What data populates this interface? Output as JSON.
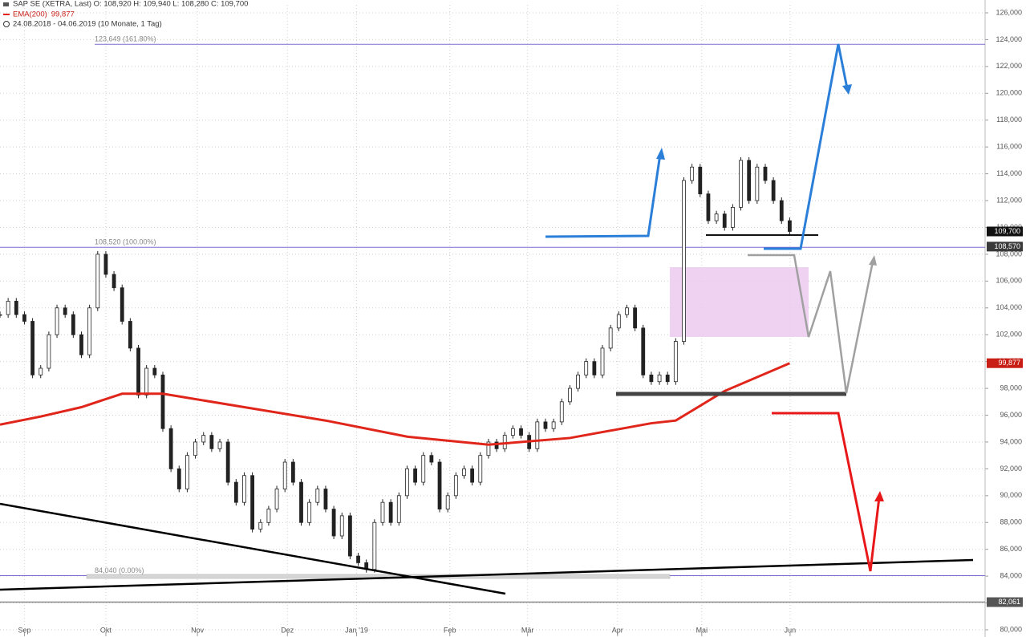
{
  "chart_data": {
    "type": "candlestick",
    "title": "SAP SE (XETRA, Last)  O: 108,920  H: 109,940  L: 108,280  C: 109,700",
    "subtitle": "24.08.2018 - 04.06.2019 (10 Monate, 1 Tag)",
    "xlim": [
      0,
      242
    ],
    "xticks": [
      {
        "value": 6,
        "label": "Sep"
      },
      {
        "value": 26,
        "label": "Okt"
      },
      {
        "value": 48.5,
        "label": "Nov"
      },
      {
        "value": 70.6,
        "label": "Dez"
      },
      {
        "value": 87.6,
        "label": "Jan '19"
      },
      {
        "value": 110.5,
        "label": "Feb"
      },
      {
        "value": 129.6,
        "label": "Mär"
      },
      {
        "value": 151.7,
        "label": "Apr"
      },
      {
        "value": 172.4,
        "label": "Mai"
      },
      {
        "value": 194.1,
        "label": "Jun"
      }
    ],
    "ylim": [
      80000,
      126000
    ],
    "yticks": [
      {
        "value": 80000,
        "label": "80,000"
      },
      {
        "value": 82000,
        "label": "82,000"
      },
      {
        "value": 84000,
        "label": "84,000"
      },
      {
        "value": 86000,
        "label": "86,000"
      },
      {
        "value": 88000,
        "label": "88,000"
      },
      {
        "value": 90000,
        "label": "90,000"
      },
      {
        "value": 92000,
        "label": "92,000"
      },
      {
        "value": 94000,
        "label": "94,000"
      },
      {
        "value": 96000,
        "label": "96,000"
      },
      {
        "value": 98000,
        "label": "98,000"
      },
      {
        "value": 100000,
        "label": "100,000"
      },
      {
        "value": 102000,
        "label": "102,000"
      },
      {
        "value": 104000,
        "label": "104,000"
      },
      {
        "value": 106000,
        "label": "106,000"
      },
      {
        "value": 108000,
        "label": "108,000"
      },
      {
        "value": 110000,
        "label": "110,000"
      },
      {
        "value": 112000,
        "label": "112,000"
      },
      {
        "value": 114000,
        "label": "114,000"
      },
      {
        "value": 116000,
        "label": "116,000"
      },
      {
        "value": 118000,
        "label": "118,000"
      },
      {
        "value": 120000,
        "label": "120,000"
      },
      {
        "value": 122000,
        "label": "122,000"
      },
      {
        "value": 124000,
        "label": "124,000"
      },
      {
        "value": 126000,
        "label": "126,000"
      }
    ],
    "grid": true,
    "price": {
      "color": "#222222",
      "x": [
        0,
        2,
        4,
        6,
        8,
        10,
        12,
        14,
        16,
        18,
        20,
        22,
        24,
        26,
        28,
        30,
        32,
        34,
        36,
        38,
        40,
        42,
        44,
        46,
        48,
        50,
        52,
        54,
        56,
        58,
        60,
        62,
        64,
        66,
        68,
        70,
        72,
        74,
        76,
        78,
        80,
        82,
        84,
        86,
        88,
        90,
        92,
        94,
        96,
        98,
        100,
        102,
        104,
        106,
        108,
        110,
        112,
        114,
        116,
        118,
        120,
        122,
        124,
        126,
        128,
        130,
        132,
        134,
        136,
        138,
        140,
        142,
        144,
        146,
        148,
        150,
        152,
        154,
        156,
        158,
        160,
        162,
        164,
        166,
        168,
        170,
        172,
        174,
        176,
        178,
        180,
        182,
        184,
        186,
        188,
        190,
        192,
        194
      ],
      "close": [
        103500,
        104500,
        103500,
        103000,
        99000,
        99500,
        102000,
        104000,
        103500,
        102000,
        100500,
        104000,
        108000,
        106500,
        105500,
        103000,
        101000,
        97500,
        99500,
        99000,
        95000,
        92000,
        90500,
        93000,
        94000,
        94500,
        93500,
        94000,
        91000,
        89500,
        91500,
        87500,
        88000,
        89000,
        90500,
        92500,
        91000,
        88000,
        89500,
        90500,
        89000,
        87000,
        88500,
        85500,
        85000,
        84500,
        88000,
        89500,
        88000,
        90000,
        92000,
        91000,
        93000,
        92500,
        89000,
        90000,
        91500,
        92000,
        91000,
        93000,
        94000,
        93500,
        94500,
        95000,
        94500,
        93500,
        95500,
        95000,
        95500,
        97000,
        98000,
        99000,
        100000,
        99000,
        101000,
        102500,
        103500,
        104000,
        102500,
        99000,
        98500,
        99000,
        98500,
        101500,
        113500,
        114500,
        112500,
        110500,
        111000,
        110000,
        111500,
        115000,
        112000,
        114500,
        113500,
        112000,
        110500,
        109700
      ],
      "last_label": "109,700"
    },
    "series": [
      {
        "name": "EMA(200)",
        "color": "#e0261b",
        "x": [
          0,
          10,
          20,
          30,
          40,
          60,
          80,
          100,
          120,
          140,
          160,
          166,
          178,
          194
        ],
        "values": [
          95300,
          95900,
          96600,
          97600,
          97600,
          96600,
          95600,
          94400,
          93800,
          94300,
          95400,
          95600,
          97800,
          99877
        ],
        "last_label": "99,877"
      }
    ],
    "levels": [
      {
        "value": 123649,
        "label": "123,649 (161.80%)",
        "color": "#7b6fd0"
      },
      {
        "value": 108520,
        "label": "108,520 (100.00%)",
        "color": "#7b6fd0"
      },
      {
        "value": 84040,
        "label": "84,040 (0.00%)",
        "color": "#7b6fd0"
      },
      {
        "value": 82061,
        "label": "82,061",
        "color": "#888888"
      }
    ],
    "price_marker": {
      "value": 108570,
      "label": "108,570"
    }
  }
}
